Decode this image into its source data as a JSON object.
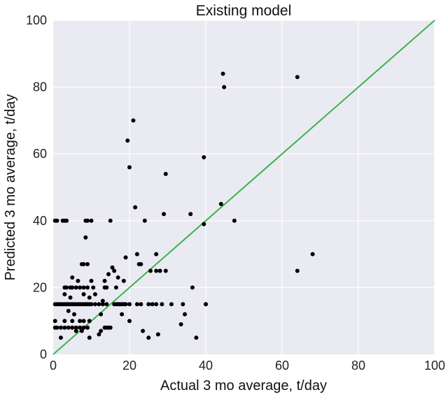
{
  "chart_data": {
    "type": "scatter",
    "title": "Existing model",
    "xlabel": "Actual 3 mo average, t/day",
    "ylabel": "Predicted 3 mo average, t/day",
    "xlim": [
      0,
      100
    ],
    "ylim": [
      0,
      100
    ],
    "xticks": [
      0,
      20,
      40,
      60,
      80,
      100
    ],
    "yticks": [
      0,
      20,
      40,
      60,
      80,
      100
    ],
    "grid": true,
    "colors": {
      "background": "#eaeaf2",
      "grid": "#ffffff",
      "points": "#000000",
      "line": "#3cb44b"
    },
    "reference_line": {
      "x": [
        0,
        100
      ],
      "y": [
        0,
        100
      ]
    },
    "series": [
      {
        "marker": "circle",
        "color": "#000000",
        "points": [
          [
            0.5,
            40
          ],
          [
            1.0,
            40
          ],
          [
            2.5,
            40
          ],
          [
            3.0,
            40
          ],
          [
            3.5,
            40
          ],
          [
            0.5,
            15
          ],
          [
            1.0,
            15
          ],
          [
            1.5,
            15
          ],
          [
            2.0,
            15
          ],
          [
            2.5,
            15
          ],
          [
            3.0,
            15
          ],
          [
            3.5,
            15
          ],
          [
            4.0,
            15
          ],
          [
            4.5,
            15
          ],
          [
            5.0,
            15
          ],
          [
            5.5,
            15
          ],
          [
            6.0,
            15
          ],
          [
            6.5,
            15
          ],
          [
            7.0,
            15
          ],
          [
            7.5,
            15
          ],
          [
            8.0,
            15
          ],
          [
            8.5,
            15
          ],
          [
            9.0,
            15
          ],
          [
            9.5,
            15
          ],
          [
            10.0,
            15
          ],
          [
            11.0,
            15
          ],
          [
            12.0,
            15
          ],
          [
            13.0,
            15
          ],
          [
            14.0,
            15
          ],
          [
            16.0,
            15
          ],
          [
            16.5,
            15
          ],
          [
            17.0,
            15
          ],
          [
            17.5,
            15
          ],
          [
            18.0,
            15
          ],
          [
            18.5,
            15
          ],
          [
            19.0,
            15
          ],
          [
            20.0,
            15
          ],
          [
            22.0,
            15
          ],
          [
            23.0,
            15
          ],
          [
            25.0,
            15
          ],
          [
            27.0,
            15
          ],
          [
            28.5,
            15
          ],
          [
            31.0,
            15
          ],
          [
            34.0,
            15
          ],
          [
            40.0,
            15
          ],
          [
            0.5,
            8
          ],
          [
            1.0,
            8
          ],
          [
            2.0,
            8
          ],
          [
            3.0,
            8
          ],
          [
            4.0,
            8
          ],
          [
            5.0,
            8
          ],
          [
            6.0,
            8
          ],
          [
            7.0,
            8
          ],
          [
            8.0,
            8
          ],
          [
            9.0,
            8
          ],
          [
            13.5,
            8
          ],
          [
            14.0,
            8
          ],
          [
            14.5,
            8
          ],
          [
            15.0,
            8
          ],
          [
            0.5,
            10
          ],
          [
            3.0,
            10
          ],
          [
            5.0,
            10
          ],
          [
            7.0,
            10
          ],
          [
            8.0,
            10
          ],
          [
            9.5,
            10
          ],
          [
            2.0,
            5
          ],
          [
            6.0,
            7
          ],
          [
            7.5,
            7
          ],
          [
            9.5,
            5
          ],
          [
            12.0,
            6
          ],
          [
            3.0,
            20
          ],
          [
            3.5,
            20
          ],
          [
            4.5,
            20
          ],
          [
            5.0,
            20
          ],
          [
            6.0,
            20
          ],
          [
            7.0,
            20
          ],
          [
            8.0,
            20
          ],
          [
            9.0,
            20
          ],
          [
            10.5,
            20
          ],
          [
            13.5,
            20
          ],
          [
            14.0,
            20
          ],
          [
            16.5,
            20
          ],
          [
            3.0,
            18
          ],
          [
            4.0,
            13
          ],
          [
            4.5,
            17
          ],
          [
            5.5,
            12
          ],
          [
            6.5,
            22
          ],
          [
            5.0,
            23
          ],
          [
            8.0,
            18
          ],
          [
            9.5,
            17
          ],
          [
            10.0,
            22
          ],
          [
            11.0,
            18
          ],
          [
            12.5,
            12
          ],
          [
            13.0,
            16
          ],
          [
            13.5,
            22
          ],
          [
            14.5,
            24
          ],
          [
            12.5,
            7
          ],
          [
            15.5,
            26
          ],
          [
            16.0,
            25
          ],
          [
            17.0,
            23
          ],
          [
            18.5,
            22
          ],
          [
            19.0,
            29
          ],
          [
            7.5,
            27
          ],
          [
            8.0,
            27
          ],
          [
            9.0,
            27
          ],
          [
            8.5,
            40
          ],
          [
            9.0,
            40
          ],
          [
            10.0,
            40
          ],
          [
            15.0,
            40
          ],
          [
            8.5,
            35
          ],
          [
            19.5,
            64
          ],
          [
            20.0,
            56
          ],
          [
            21.0,
            70
          ],
          [
            21.5,
            44
          ],
          [
            22.0,
            30
          ],
          [
            22.5,
            27
          ],
          [
            23.0,
            27
          ],
          [
            23.5,
            7
          ],
          [
            24.0,
            40
          ],
          [
            25.0,
            5
          ],
          [
            25.5,
            25
          ],
          [
            26.0,
            15
          ],
          [
            20.0,
            10
          ],
          [
            18.0,
            12
          ],
          [
            27.0,
            30
          ],
          [
            27.0,
            25
          ],
          [
            27.5,
            6
          ],
          [
            28.0,
            25
          ],
          [
            29.0,
            42
          ],
          [
            29.5,
            54
          ],
          [
            29.5,
            25
          ],
          [
            33.5,
            9
          ],
          [
            34.5,
            12
          ],
          [
            36.0,
            42
          ],
          [
            36.5,
            20
          ],
          [
            37.5,
            5
          ],
          [
            39.5,
            59
          ],
          [
            39.5,
            39
          ],
          [
            40.0,
            15
          ],
          [
            44.0,
            45
          ],
          [
            44.5,
            84
          ],
          [
            44.8,
            80
          ],
          [
            47.5,
            40
          ],
          [
            64.0,
            83
          ],
          [
            64.0,
            25
          ],
          [
            68.0,
            30
          ]
        ]
      }
    ]
  }
}
